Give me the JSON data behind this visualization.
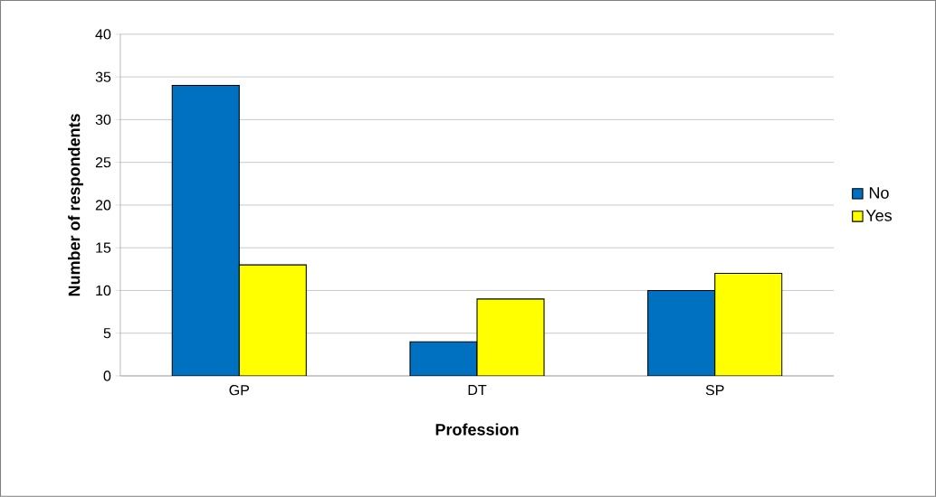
{
  "chart_data": {
    "type": "bar",
    "xlabel": "Profession",
    "ylabel": "Number of respondents",
    "categories": [
      "GP",
      "DT",
      "SP"
    ],
    "series": [
      {
        "name": "No",
        "color": "#0070c0",
        "values": [
          34,
          4,
          10
        ]
      },
      {
        "name": "Yes",
        "color": "#ffff00",
        "values": [
          13,
          9,
          12
        ]
      }
    ],
    "ylim": [
      0,
      40
    ],
    "yticks": [
      0,
      5,
      10,
      15,
      20,
      25,
      30,
      35,
      40
    ],
    "grid": "y",
    "legend": "right"
  }
}
